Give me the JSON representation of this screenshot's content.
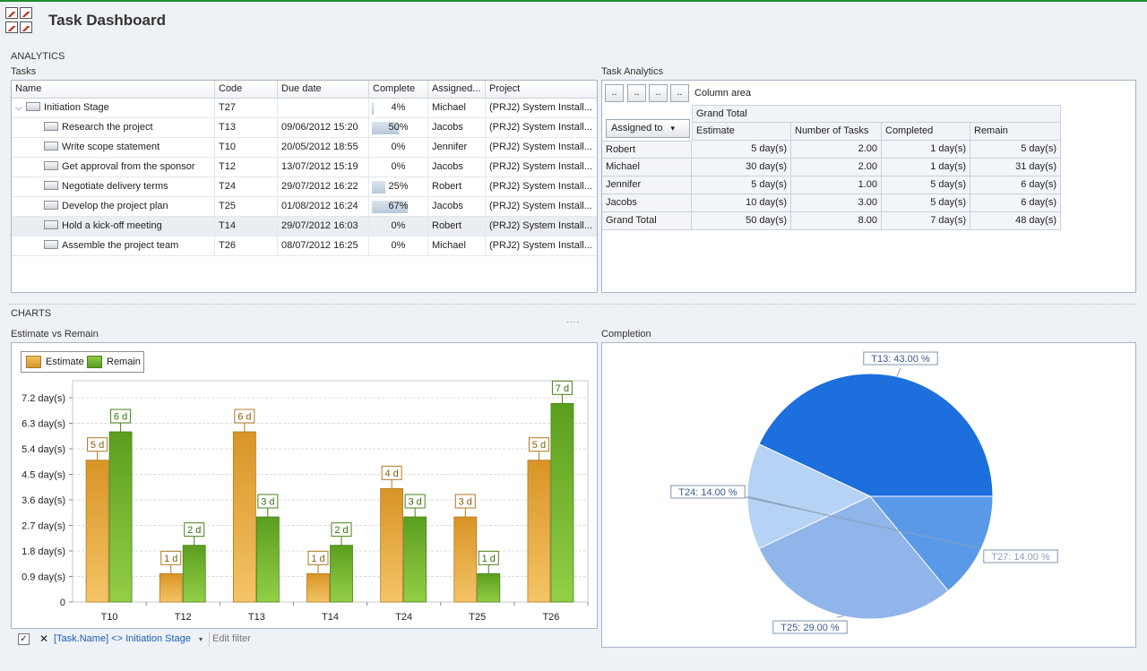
{
  "app": {
    "title": "Task Dashboard"
  },
  "sections": {
    "analytics": "ANALYTICS",
    "charts": "CHARTS",
    "tasks": "Tasks",
    "task_analytics": "Task Analytics",
    "estimate_vs_remain": "Estimate vs Remain",
    "completion": "Completion"
  },
  "tasks_grid": {
    "columns": [
      "Name",
      "Code",
      "Due date",
      "Complete",
      "Assigned...",
      "Project"
    ],
    "rows": [
      {
        "name": "Initiation Stage",
        "code": "T27",
        "due": "",
        "complete": "4%",
        "pct": 4,
        "assigned": "Michael",
        "project": "(PRJ2) System Install...",
        "level": 0
      },
      {
        "name": "Research the project",
        "code": "T13",
        "due": "09/06/2012 15:20",
        "complete": "50%",
        "pct": 50,
        "assigned": "Jacobs",
        "project": "(PRJ2) System Install...",
        "level": 1
      },
      {
        "name": "Write scope statement",
        "code": "T10",
        "due": "20/05/2012 18:55",
        "complete": "0%",
        "pct": 0,
        "assigned": "Jennifer",
        "project": "(PRJ2) System Install...",
        "level": 1
      },
      {
        "name": "Get approval from the sponsor",
        "code": "T12",
        "due": "13/07/2012 15:19",
        "complete": "0%",
        "pct": 0,
        "assigned": "Jacobs",
        "project": "(PRJ2) System Install...",
        "level": 1
      },
      {
        "name": "Negotiate delivery terms",
        "code": "T24",
        "due": "29/07/2012 16:22",
        "complete": "25%",
        "pct": 25,
        "assigned": "Robert",
        "project": "(PRJ2) System Install...",
        "level": 1
      },
      {
        "name": "Develop the project plan",
        "code": "T25",
        "due": "01/08/2012 16:24",
        "complete": "67%",
        "pct": 67,
        "assigned": "Jacobs",
        "project": "(PRJ2) System Install...",
        "level": 1
      },
      {
        "name": "Hold a kick-off meeting",
        "code": "T14",
        "due": "29/07/2012 16:03",
        "complete": "0%",
        "pct": 0,
        "assigned": "Robert",
        "project": "(PRJ2) System Install...",
        "level": 1,
        "selected": true
      },
      {
        "name": "Assemble the project team",
        "code": "T26",
        "due": "08/07/2012 16:25",
        "complete": "0%",
        "pct": 0,
        "assigned": "Michael",
        "project": "(PRJ2) System Install...",
        "level": 1
      }
    ]
  },
  "pivot": {
    "buttons": [
      "..",
      "..",
      "..",
      ".."
    ],
    "column_area": "Column area",
    "grand_total_header": "Grand Total",
    "row_field": "Assigned to",
    "columns": [
      "Estimate",
      "Number of Tasks",
      "Completed",
      "Remain"
    ],
    "rows": [
      {
        "label": "Robert",
        "values": [
          "5 day(s)",
          "2.00",
          "1 day(s)",
          "5 day(s)"
        ]
      },
      {
        "label": "Michael",
        "values": [
          "30 day(s)",
          "2.00",
          "1 day(s)",
          "31 day(s)"
        ]
      },
      {
        "label": "Jennifer",
        "values": [
          "5 day(s)",
          "1.00",
          "5 day(s)",
          "6 day(s)"
        ]
      },
      {
        "label": "Jacobs",
        "values": [
          "10 day(s)",
          "3.00",
          "5 day(s)",
          "6 day(s)"
        ]
      },
      {
        "label": "Grand Total",
        "values": [
          "50 day(s)",
          "8.00",
          "7 day(s)",
          "48 day(s)"
        ]
      }
    ]
  },
  "chart_data": [
    {
      "type": "bar",
      "title": "Estimate vs Remain",
      "categories": [
        "T10",
        "T12",
        "T13",
        "T14",
        "T24",
        "T25",
        "T26"
      ],
      "series": [
        {
          "name": "Estimate",
          "values": [
            5,
            1,
            6,
            1,
            4,
            3,
            5
          ],
          "labels": [
            "5 d",
            "1 d",
            "6 d",
            "1 d",
            "4 d",
            "3 d",
            "5 d"
          ],
          "color": "#e0a53c"
        },
        {
          "name": "Remain",
          "values": [
            6,
            2,
            3,
            2,
            3,
            1,
            7
          ],
          "labels": [
            "6 d",
            "2 d",
            "3 d",
            "2 d",
            "3 d",
            "1 d",
            "7 d"
          ],
          "color": "#6aae2b"
        }
      ],
      "y_ticks": [
        "0",
        "0.9 day(s)",
        "1.8 day(s)",
        "2.7 day(s)",
        "3.6 day(s)",
        "4.5 day(s)",
        "5.4 day(s)",
        "6.3 day(s)",
        "7.2 day(s)"
      ],
      "ylim": [
        0,
        7.8
      ],
      "legend": "top-left",
      "grid": true
    },
    {
      "type": "pie",
      "title": "Completion",
      "slices": [
        {
          "label": "T13: 43.00 %",
          "value": 43,
          "color": "#1c6fdc"
        },
        {
          "label": "T27: 14.00 %",
          "value": 14,
          "color": "#b6d2f4"
        },
        {
          "label": "T25: 29.00 %",
          "value": 29,
          "color": "#8fb5ea"
        },
        {
          "label": "T24: 14.00 %",
          "value": 14,
          "color": "#5a99e8"
        }
      ]
    }
  ],
  "filter": {
    "expression": "[Task.Name] <> Initiation Stage",
    "edit_label": "Edit filter",
    "check": "✓",
    "close": "✕",
    "dropdown": "▾"
  },
  "misc": {
    "dots": "....",
    "expander": "⌵",
    "dropdown_arrow": "▾"
  }
}
